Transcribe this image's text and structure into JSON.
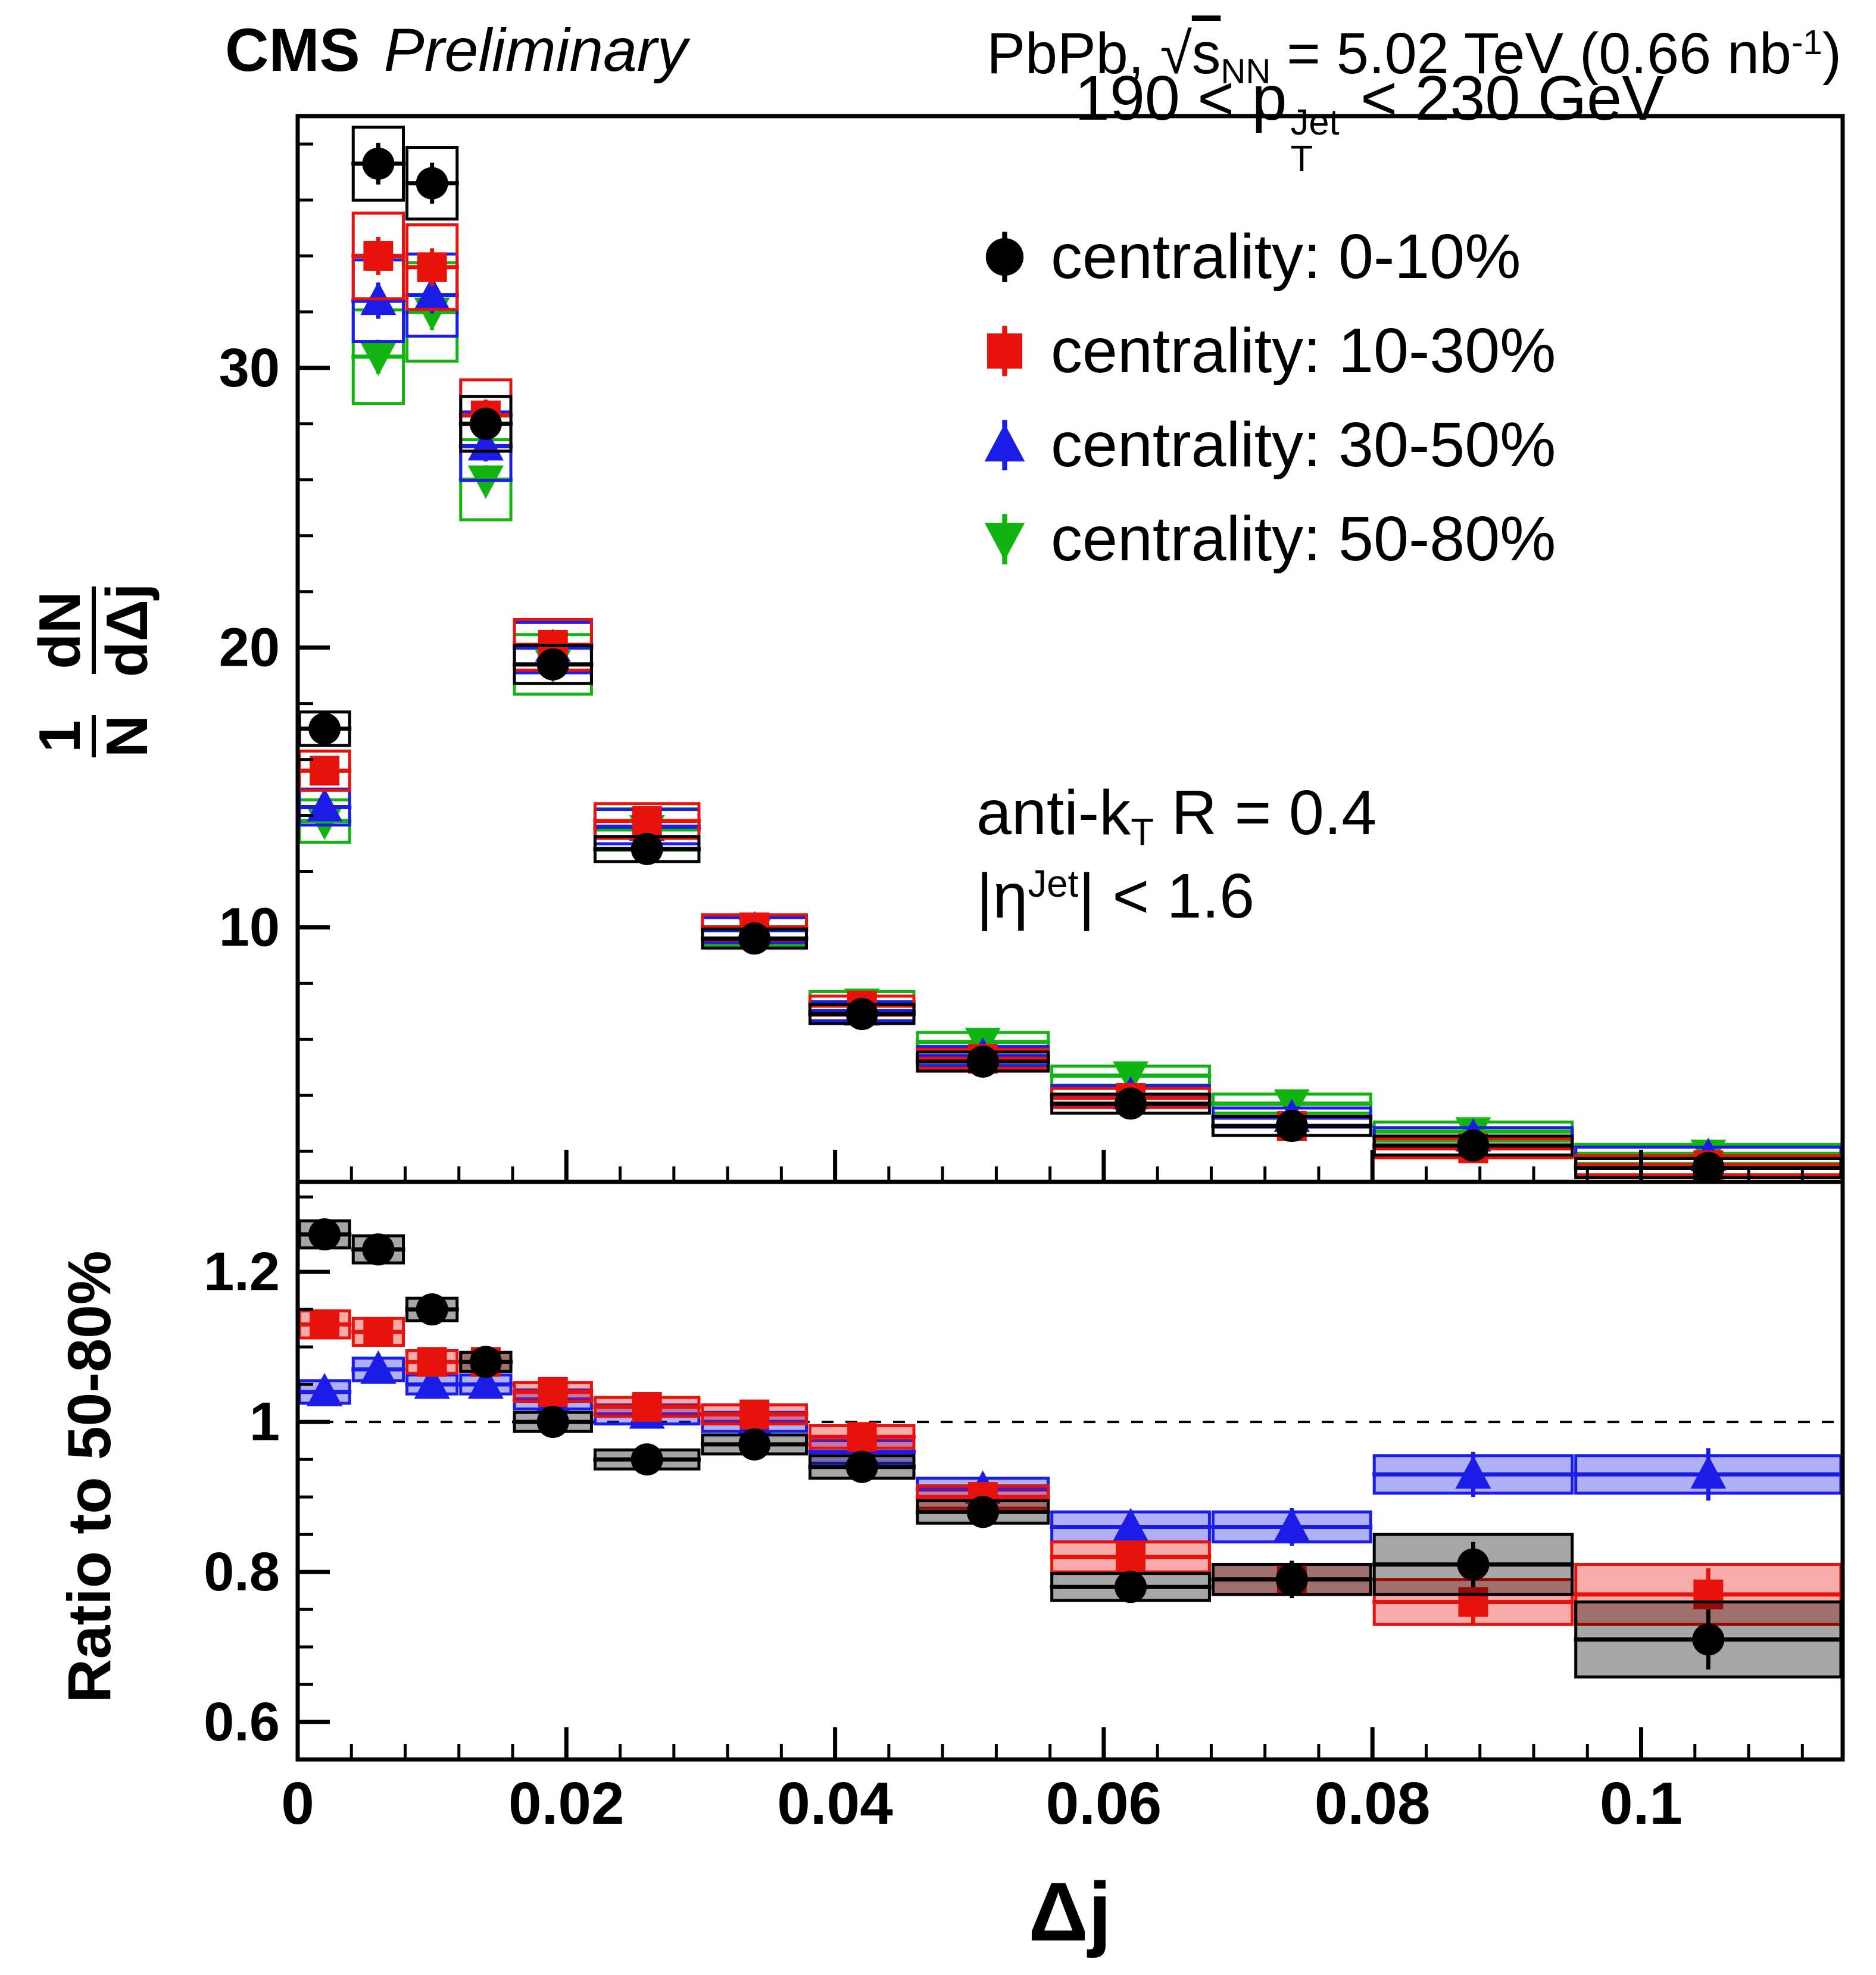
{
  "header": {
    "experiment": "CMS",
    "status": "Preliminary",
    "collision_rich": [
      {
        "t": "PbPb, "
      },
      {
        "t": "√"
      },
      {
        "t": "s",
        "s": "ov"
      },
      {
        "t": "NN",
        "s": "sub"
      },
      {
        "t": " = 5.02 TeV (0.66 nb"
      },
      {
        "t": "-1",
        "s": "sup"
      },
      {
        "t": ")"
      }
    ]
  },
  "legend": {
    "pt_range_rich": [
      {
        "t": "190 < p"
      },
      {
        "s": "stack",
        "sup": "Jet",
        "sub": "T"
      },
      {
        "t": " < 230 GeV"
      }
    ],
    "entries": [
      {
        "label": "centrality: 0-10%",
        "marker": "circle",
        "color": "#000000"
      },
      {
        "label": "centrality: 10-30%",
        "marker": "square",
        "color": "#e8120c"
      },
      {
        "label": "centrality: 30-50%",
        "marker": "triangle-up",
        "color": "#1c1ce8"
      },
      {
        "label": "centrality: 50-80%",
        "marker": "triangle-down",
        "color": "#12b412"
      }
    ],
    "algorithm_rich": [
      {
        "t": "anti-k"
      },
      {
        "t": "T",
        "s": "sub"
      },
      {
        "t": " R = 0.4"
      }
    ],
    "eta_rich": [
      {
        "t": "|η"
      },
      {
        "t": "Jet",
        "s": "sup"
      },
      {
        "t": "| < 1.6"
      }
    ]
  },
  "axes": {
    "x_title": "Δj",
    "bottom_y_title": "Ratio to 50-80%",
    "top_y_title": {
      "num1": "1",
      "den1": "N",
      "num2": "dN",
      "den2": "dΔj"
    }
  },
  "chart_data": [
    {
      "type": "scatter",
      "panel": "top",
      "ylabel": "(1/N) dN/dΔj",
      "xlim": [
        0,
        0.115
      ],
      "ylim": [
        0.9,
        39
      ],
      "yticks": [
        10,
        20,
        30
      ],
      "ytick_labels": [
        "10",
        "20",
        "30"
      ],
      "y_minor_step": 2,
      "xticks": [
        0,
        0.02,
        0.04,
        0.06,
        0.08,
        0.1
      ],
      "xtick_labels": [
        "0",
        "0.02",
        "0.04",
        "0.06",
        "0.08",
        "0.1"
      ],
      "x_minor_step": 0.004,
      "bin_edges": [
        [
          0,
          0.004
        ],
        [
          0.004,
          0.008
        ],
        [
          0.008,
          0.012
        ],
        [
          0.012,
          0.016
        ],
        [
          0.016,
          0.022
        ],
        [
          0.022,
          0.03
        ],
        [
          0.03,
          0.038
        ],
        [
          0.038,
          0.046
        ],
        [
          0.046,
          0.056
        ],
        [
          0.056,
          0.068
        ],
        [
          0.068,
          0.08
        ],
        [
          0.08,
          0.095
        ],
        [
          0.095,
          0.115
        ]
      ],
      "bin_centers": [
        0.002,
        0.006,
        0.01,
        0.014,
        0.019,
        0.026,
        0.034,
        0.042,
        0.051,
        0.062,
        0.074,
        0.0875,
        0.105
      ],
      "series": [
        {
          "name": "centrality: 0-10%",
          "marker": "circle",
          "color": "#000000",
          "sys_frac": 0.035,
          "stat_frac": 0.02,
          "values": [
            17.1,
            37.3,
            36.6,
            28.0,
            19.4,
            12.8,
            9.6,
            6.9,
            5.2,
            3.7,
            2.9,
            2.2,
            1.4
          ]
        },
        {
          "name": "centrality: 10-30%",
          "marker": "square",
          "color": "#e8120c",
          "sys_frac": 0.045,
          "stat_frac": 0.02,
          "values": [
            15.6,
            34.0,
            33.6,
            28.3,
            20.1,
            13.8,
            10.0,
            7.2,
            5.3,
            3.9,
            2.9,
            2.1,
            1.5
          ]
        },
        {
          "name": "centrality: 30-50%",
          "marker": "triangle-up",
          "color": "#1c1ce8",
          "sys_frac": 0.045,
          "stat_frac": 0.02,
          "values": [
            14.3,
            32.4,
            32.6,
            27.2,
            20.0,
            13.6,
            9.9,
            7.0,
            5.4,
            4.0,
            3.2,
            2.5,
            1.8
          ]
        },
        {
          "name": "centrality: 50-80%",
          "marker": "triangle-down",
          "color": "#12b412",
          "sys_frac": 0.055,
          "stat_frac": 0.02,
          "values": [
            13.8,
            30.4,
            32.0,
            26.0,
            19.4,
            13.5,
            9.9,
            7.3,
            5.9,
            4.7,
            3.7,
            2.7,
            1.9
          ]
        }
      ]
    },
    {
      "type": "scatter",
      "panel": "bottom",
      "ylabel": "Ratio to 50-80%",
      "ylim": [
        0.55,
        1.32
      ],
      "yticks": [
        0.6,
        0.8,
        1,
        1.2
      ],
      "ytick_labels": [
        "0.6",
        "0.8",
        "1",
        "1.2"
      ],
      "y_minor_step": 0.05,
      "reference_line": 1,
      "bin_edges": [
        [
          0,
          0.004
        ],
        [
          0.004,
          0.008
        ],
        [
          0.008,
          0.012
        ],
        [
          0.012,
          0.016
        ],
        [
          0.016,
          0.022
        ],
        [
          0.022,
          0.03
        ],
        [
          0.03,
          0.038
        ],
        [
          0.038,
          0.046
        ],
        [
          0.046,
          0.056
        ],
        [
          0.056,
          0.068
        ],
        [
          0.068,
          0.08
        ],
        [
          0.08,
          0.095
        ],
        [
          0.095,
          0.115
        ]
      ],
      "bin_centers": [
        0.002,
        0.006,
        0.01,
        0.014,
        0.019,
        0.026,
        0.034,
        0.042,
        0.051,
        0.062,
        0.074,
        0.0875,
        0.105
      ],
      "series": [
        {
          "name": "centrality: 0-10%",
          "marker": "circle",
          "color": "#000000",
          "values": [
            1.25,
            1.23,
            1.15,
            1.08,
            1.0,
            0.95,
            0.97,
            0.94,
            0.88,
            0.78,
            0.79,
            0.81,
            0.71
          ],
          "stat": [
            0.02,
            0.02,
            0.018,
            0.015,
            0.012,
            0.012,
            0.012,
            0.015,
            0.018,
            0.02,
            0.025,
            0.03,
            0.04
          ],
          "sys": [
            0.018,
            0.018,
            0.015,
            0.012,
            0.012,
            0.012,
            0.012,
            0.015,
            0.015,
            0.018,
            0.02,
            0.04,
            0.05
          ]
        },
        {
          "name": "centrality: 10-30%",
          "marker": "square",
          "color": "#e8120c",
          "values": [
            1.13,
            1.12,
            1.08,
            1.08,
            1.04,
            1.02,
            1.01,
            0.98,
            0.9,
            0.82,
            0.79,
            0.76,
            0.77
          ],
          "stat": [
            0.018,
            0.018,
            0.015,
            0.013,
            0.012,
            0.012,
            0.012,
            0.014,
            0.016,
            0.02,
            0.022,
            0.03,
            0.035
          ],
          "sys": [
            0.018,
            0.018,
            0.015,
            0.012,
            0.012,
            0.012,
            0.012,
            0.015,
            0.015,
            0.02,
            0.02,
            0.03,
            0.04
          ]
        },
        {
          "name": "centrality: 30-50%",
          "marker": "triangle-up",
          "color": "#1c1ce8",
          "values": [
            1.04,
            1.07,
            1.05,
            1.05,
            1.03,
            1.01,
            1.0,
            0.96,
            0.91,
            0.86,
            0.86,
            0.93,
            0.93
          ],
          "stat": [
            0.018,
            0.018,
            0.015,
            0.013,
            0.012,
            0.012,
            0.012,
            0.015,
            0.018,
            0.022,
            0.025,
            0.03,
            0.035
          ],
          "sys": [
            0.015,
            0.015,
            0.012,
            0.012,
            0.012,
            0.012,
            0.012,
            0.015,
            0.015,
            0.02,
            0.02,
            0.025,
            0.025
          ]
        }
      ]
    }
  ]
}
